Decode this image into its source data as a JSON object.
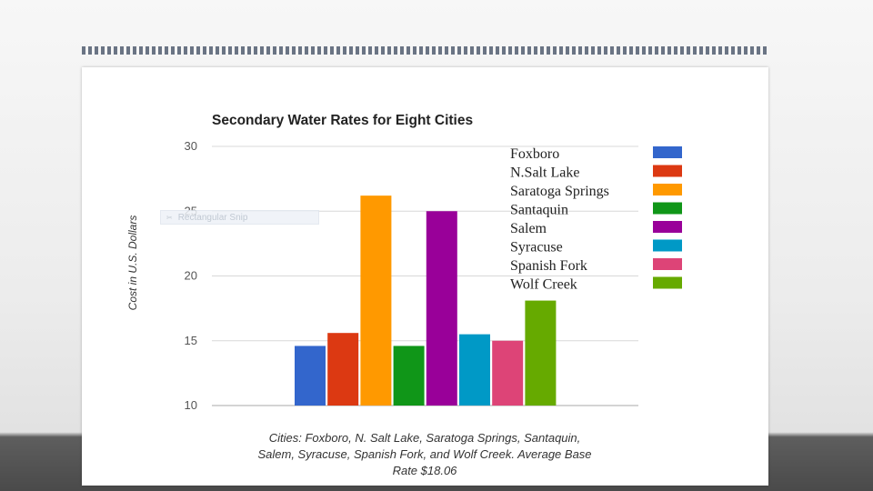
{
  "chart_data": {
    "type": "bar",
    "title": "Secondary Water Rates for Eight Cities",
    "ylabel": "Cost in U.S. Dollars",
    "xlabel": "",
    "ylim": [
      10,
      30
    ],
    "yticks": [
      10,
      15,
      20,
      25,
      30
    ],
    "grid": true,
    "legend_placement": "top-right",
    "categories": [
      "Foxboro",
      "N.Salt Lake",
      "Saratoga Springs",
      "Santaquin",
      "Salem",
      "Syracuse",
      "Spanish Fork",
      "Wolf Creek"
    ],
    "values": [
      14.6,
      15.6,
      26.2,
      14.6,
      25.0,
      15.5,
      15.0,
      18.1
    ],
    "colors": [
      "#3366cc",
      "#dc3912",
      "#ff9900",
      "#109618",
      "#990099",
      "#0099c6",
      "#dd4477",
      "#66aa00"
    ],
    "caption_lines": [
      "Cities: Foxboro, N. Salt Lake, Saratoga Springs, Santaquin,",
      "Salem, Syracuse, Spanish Fork, and Wolf Creek. Average Base",
      "Rate $18.06"
    ]
  },
  "overlay": {
    "ghost_label": "Rectangular Snip",
    "ghost_icon": "scissors-icon"
  }
}
